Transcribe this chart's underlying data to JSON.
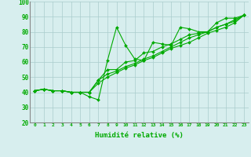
{
  "title": "",
  "xlabel": "Humidité relative (%)",
  "ylabel": "",
  "background_color": "#d7eeee",
  "grid_color": "#aacccc",
  "line_color": "#00aa00",
  "marker_color": "#00aa00",
  "xlim": [
    -0.5,
    23.5
  ],
  "ylim": [
    20,
    100
  ],
  "xticks": [
    0,
    1,
    2,
    3,
    4,
    5,
    6,
    7,
    8,
    9,
    10,
    11,
    12,
    13,
    14,
    15,
    16,
    17,
    18,
    19,
    20,
    21,
    22,
    23
  ],
  "yticks": [
    20,
    30,
    40,
    50,
    60,
    70,
    80,
    90,
    100
  ],
  "series": [
    [
      41,
      42,
      41,
      41,
      40,
      40,
      37,
      35,
      61,
      83,
      71,
      62,
      61,
      73,
      72,
      71,
      83,
      82,
      80,
      80,
      86,
      89,
      89,
      91
    ],
    [
      41,
      42,
      41,
      41,
      40,
      40,
      40,
      48,
      55,
      55,
      60,
      61,
      66,
      67,
      70,
      72,
      75,
      78,
      79,
      80,
      83,
      85,
      88,
      91
    ],
    [
      41,
      42,
      41,
      41,
      40,
      40,
      40,
      48,
      52,
      54,
      57,
      59,
      62,
      64,
      67,
      70,
      73,
      76,
      78,
      80,
      83,
      85,
      87,
      91
    ],
    [
      41,
      42,
      41,
      41,
      40,
      40,
      40,
      46,
      50,
      53,
      56,
      58,
      61,
      63,
      66,
      69,
      71,
      73,
      76,
      79,
      81,
      83,
      86,
      91
    ]
  ]
}
